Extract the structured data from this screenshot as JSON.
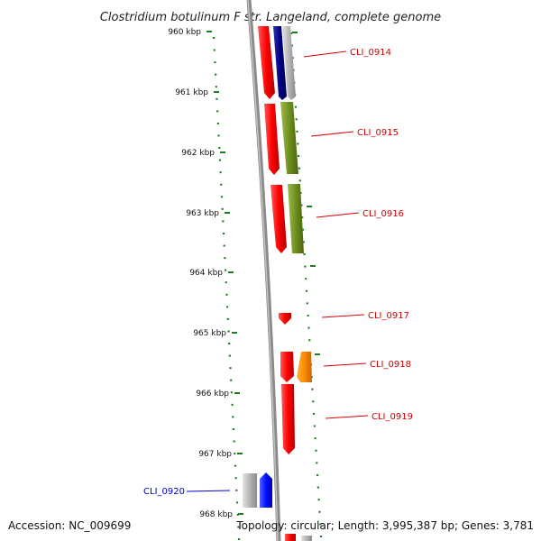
{
  "title": "Clostridium botulinum F str. Langeland, complete genome",
  "footer": {
    "accession": "Accession: NC_009699",
    "summary": "Topology: circular; Length: 3,995,387 bp; Genes: 3,781"
  },
  "colors": {
    "strand_plus": "#ff0000",
    "label_red": "#d40000",
    "label_blue": "#0000d0",
    "tick_green": "#1e7d1e",
    "backbone": "#8a8a8a",
    "olive": "#6e8e1e",
    "navy": "#000080",
    "orange": "#ff8c00",
    "gray": "#b4b4b4",
    "blue": "#0010ff"
  },
  "scale": {
    "ticks": [
      {
        "label": "960 kbp"
      },
      {
        "label": "961 kbp"
      },
      {
        "label": "962 kbp"
      },
      {
        "label": "963 kbp"
      },
      {
        "label": "964 kbp"
      },
      {
        "label": "965 kbp"
      },
      {
        "label": "966 kbp"
      },
      {
        "label": "967 kbp"
      },
      {
        "label": "968 kbp"
      }
    ]
  },
  "genes": [
    {
      "name": "CLI_0914",
      "label_color": "red"
    },
    {
      "name": "CLI_0915",
      "label_color": "red"
    },
    {
      "name": "CLI_0916",
      "label_color": "red"
    },
    {
      "name": "CLI_0917",
      "label_color": "red"
    },
    {
      "name": "CLI_0918",
      "label_color": "red"
    },
    {
      "name": "CLI_0919",
      "label_color": "red"
    },
    {
      "name": "CLI_0920",
      "label_color": "blue"
    }
  ]
}
